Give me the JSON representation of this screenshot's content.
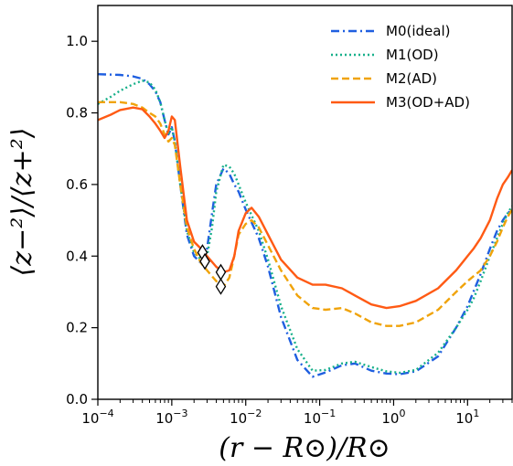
{
  "chart_data": {
    "type": "line",
    "xlabel": "(r − R⊙)/R⊙",
    "ylabel": "⟨z−²⟩/⟨z+²⟩",
    "xscale": "log",
    "xlim": [
      0.0001,
      40
    ],
    "ylim": [
      0.0,
      1.1
    ],
    "grid": false,
    "legend_position": "top-right",
    "x_ticks": [
      {
        "value": 0.0001,
        "base": "10",
        "exp": "−4"
      },
      {
        "value": 0.001,
        "base": "10",
        "exp": "−3"
      },
      {
        "value": 0.01,
        "base": "10",
        "exp": "−2"
      },
      {
        "value": 0.1,
        "base": "10",
        "exp": "−1"
      },
      {
        "value": 1,
        "base": "10",
        "exp": "0"
      },
      {
        "value": 10,
        "base": "10",
        "exp": "1"
      }
    ],
    "y_ticks": [
      {
        "value": 0.0,
        "label": "0.0"
      },
      {
        "value": 0.2,
        "label": "0.2"
      },
      {
        "value": 0.4,
        "label": "0.4"
      },
      {
        "value": 0.6,
        "label": "0.6"
      },
      {
        "value": 0.8,
        "label": "0.8"
      },
      {
        "value": 1.0,
        "label": "1.0"
      }
    ],
    "series": [
      {
        "name": "M0(ideal)",
        "color": "#1f5fe0",
        "dash": "9,4,2,4",
        "points": [
          [
            0.0001,
            0.908
          ],
          [
            0.0002,
            0.906
          ],
          [
            0.0003,
            0.902
          ],
          [
            0.0004,
            0.895
          ],
          [
            0.0005,
            0.88
          ],
          [
            0.0006,
            0.86
          ],
          [
            0.0007,
            0.83
          ],
          [
            0.0008,
            0.78
          ],
          [
            0.0009,
            0.74
          ],
          [
            0.001,
            0.76
          ],
          [
            0.0011,
            0.72
          ],
          [
            0.0013,
            0.6
          ],
          [
            0.0016,
            0.46
          ],
          [
            0.002,
            0.4
          ],
          [
            0.0025,
            0.38
          ],
          [
            0.003,
            0.42
          ],
          [
            0.0035,
            0.52
          ],
          [
            0.004,
            0.6
          ],
          [
            0.005,
            0.645
          ],
          [
            0.006,
            0.63
          ],
          [
            0.007,
            0.6
          ],
          [
            0.008,
            0.58
          ],
          [
            0.01,
            0.53
          ],
          [
            0.015,
            0.45
          ],
          [
            0.02,
            0.37
          ],
          [
            0.03,
            0.23
          ],
          [
            0.05,
            0.11
          ],
          [
            0.08,
            0.063
          ],
          [
            0.12,
            0.075
          ],
          [
            0.2,
            0.095
          ],
          [
            0.3,
            0.1
          ],
          [
            0.5,
            0.08
          ],
          [
            0.8,
            0.072
          ],
          [
            1.2,
            0.07
          ],
          [
            2,
            0.078
          ],
          [
            4,
            0.12
          ],
          [
            7,
            0.2
          ],
          [
            10,
            0.26
          ],
          [
            12,
            0.3
          ],
          [
            15,
            0.35
          ],
          [
            20,
            0.42
          ],
          [
            25,
            0.47
          ],
          [
            30,
            0.5
          ],
          [
            35,
            0.52
          ],
          [
            40,
            0.53
          ]
        ]
      },
      {
        "name": "M1(OD)",
        "color": "#17b08a",
        "dash": "2,3",
        "points": [
          [
            0.0001,
            0.825
          ],
          [
            0.00015,
            0.845
          ],
          [
            0.0002,
            0.862
          ],
          [
            0.0003,
            0.88
          ],
          [
            0.0004,
            0.89
          ],
          [
            0.0005,
            0.885
          ],
          [
            0.0006,
            0.865
          ],
          [
            0.0007,
            0.83
          ],
          [
            0.0008,
            0.78
          ],
          [
            0.0009,
            0.74
          ],
          [
            0.001,
            0.76
          ],
          [
            0.0011,
            0.72
          ],
          [
            0.0013,
            0.6
          ],
          [
            0.0016,
            0.47
          ],
          [
            0.002,
            0.41
          ],
          [
            0.0025,
            0.39
          ],
          [
            0.003,
            0.4
          ],
          [
            0.0035,
            0.48
          ],
          [
            0.004,
            0.58
          ],
          [
            0.005,
            0.655
          ],
          [
            0.006,
            0.65
          ],
          [
            0.007,
            0.63
          ],
          [
            0.008,
            0.6
          ],
          [
            0.01,
            0.55
          ],
          [
            0.015,
            0.47
          ],
          [
            0.02,
            0.39
          ],
          [
            0.03,
            0.26
          ],
          [
            0.05,
            0.14
          ],
          [
            0.08,
            0.08
          ],
          [
            0.12,
            0.082
          ],
          [
            0.2,
            0.1
          ],
          [
            0.3,
            0.105
          ],
          [
            0.5,
            0.09
          ],
          [
            0.8,
            0.078
          ],
          [
            1.2,
            0.074
          ],
          [
            2,
            0.082
          ],
          [
            4,
            0.13
          ],
          [
            7,
            0.2
          ],
          [
            10,
            0.25
          ],
          [
            12,
            0.28
          ],
          [
            15,
            0.33
          ],
          [
            20,
            0.4
          ],
          [
            25,
            0.45
          ],
          [
            30,
            0.49
          ],
          [
            35,
            0.52
          ],
          [
            40,
            0.54
          ]
        ]
      },
      {
        "name": "M2(AD)",
        "color": "#f0a30a",
        "dash": "8,4",
        "points": [
          [
            0.0001,
            0.83
          ],
          [
            0.0002,
            0.83
          ],
          [
            0.0003,
            0.825
          ],
          [
            0.0004,
            0.815
          ],
          [
            0.0005,
            0.8
          ],
          [
            0.0006,
            0.79
          ],
          [
            0.0007,
            0.77
          ],
          [
            0.0008,
            0.74
          ],
          [
            0.0009,
            0.72
          ],
          [
            0.001,
            0.73
          ],
          [
            0.0011,
            0.71
          ],
          [
            0.0013,
            0.6
          ],
          [
            0.0016,
            0.48
          ],
          [
            0.002,
            0.42
          ],
          [
            0.0025,
            0.38
          ],
          [
            0.003,
            0.36
          ],
          [
            0.004,
            0.33
          ],
          [
            0.005,
            0.315
          ],
          [
            0.006,
            0.34
          ],
          [
            0.007,
            0.4
          ],
          [
            0.008,
            0.46
          ],
          [
            0.01,
            0.49
          ],
          [
            0.012,
            0.5
          ],
          [
            0.015,
            0.48
          ],
          [
            0.02,
            0.43
          ],
          [
            0.03,
            0.36
          ],
          [
            0.05,
            0.29
          ],
          [
            0.08,
            0.255
          ],
          [
            0.12,
            0.25
          ],
          [
            0.2,
            0.255
          ],
          [
            0.3,
            0.24
          ],
          [
            0.5,
            0.215
          ],
          [
            0.8,
            0.205
          ],
          [
            1.2,
            0.205
          ],
          [
            2,
            0.215
          ],
          [
            4,
            0.25
          ],
          [
            7,
            0.3
          ],
          [
            10,
            0.33
          ],
          [
            15,
            0.36
          ],
          [
            20,
            0.4
          ],
          [
            25,
            0.44
          ],
          [
            30,
            0.48
          ],
          [
            35,
            0.51
          ],
          [
            40,
            0.53
          ]
        ]
      },
      {
        "name": "M3(OD+AD)",
        "color": "#ff5a14",
        "dash": "",
        "points": [
          [
            0.0001,
            0.78
          ],
          [
            0.00015,
            0.795
          ],
          [
            0.0002,
            0.808
          ],
          [
            0.0003,
            0.815
          ],
          [
            0.0004,
            0.81
          ],
          [
            0.0005,
            0.79
          ],
          [
            0.0006,
            0.77
          ],
          [
            0.0007,
            0.75
          ],
          [
            0.0008,
            0.73
          ],
          [
            0.0009,
            0.75
          ],
          [
            0.001,
            0.79
          ],
          [
            0.0011,
            0.78
          ],
          [
            0.0013,
            0.65
          ],
          [
            0.0016,
            0.5
          ],
          [
            0.002,
            0.44
          ],
          [
            0.0025,
            0.42
          ],
          [
            0.003,
            0.4
          ],
          [
            0.004,
            0.37
          ],
          [
            0.005,
            0.355
          ],
          [
            0.006,
            0.36
          ],
          [
            0.007,
            0.4
          ],
          [
            0.008,
            0.47
          ],
          [
            0.01,
            0.52
          ],
          [
            0.012,
            0.535
          ],
          [
            0.015,
            0.51
          ],
          [
            0.02,
            0.46
          ],
          [
            0.03,
            0.39
          ],
          [
            0.05,
            0.34
          ],
          [
            0.08,
            0.32
          ],
          [
            0.12,
            0.32
          ],
          [
            0.2,
            0.31
          ],
          [
            0.3,
            0.29
          ],
          [
            0.5,
            0.265
          ],
          [
            0.8,
            0.255
          ],
          [
            1.2,
            0.26
          ],
          [
            2,
            0.275
          ],
          [
            4,
            0.31
          ],
          [
            7,
            0.36
          ],
          [
            10,
            0.4
          ],
          [
            12,
            0.42
          ],
          [
            15,
            0.45
          ],
          [
            20,
            0.5
          ],
          [
            25,
            0.56
          ],
          [
            30,
            0.6
          ],
          [
            35,
            0.62
          ],
          [
            40,
            0.64
          ]
        ]
      }
    ],
    "markers": [
      {
        "symbol": "diamond",
        "x": 0.0026,
        "y": 0.41
      },
      {
        "symbol": "diamond",
        "x": 0.0028,
        "y": 0.385
      },
      {
        "symbol": "diamond",
        "x": 0.0046,
        "y": 0.355
      },
      {
        "symbol": "diamond",
        "x": 0.0046,
        "y": 0.315
      }
    ]
  }
}
